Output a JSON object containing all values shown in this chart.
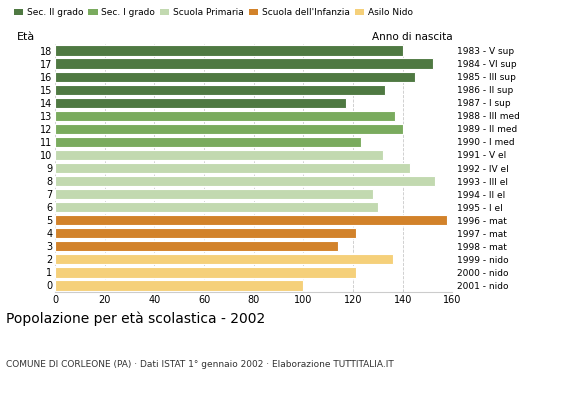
{
  "ages": [
    18,
    17,
    16,
    15,
    14,
    13,
    12,
    11,
    10,
    9,
    8,
    7,
    6,
    5,
    4,
    3,
    2,
    1,
    0
  ],
  "values": [
    140,
    152,
    145,
    133,
    117,
    137,
    140,
    123,
    132,
    143,
    153,
    128,
    130,
    158,
    121,
    114,
    136,
    121,
    100
  ],
  "right_labels": [
    "1983 - V sup",
    "1984 - VI sup",
    "1985 - III sup",
    "1986 - II sup",
    "1987 - I sup",
    "1988 - III med",
    "1989 - II med",
    "1990 - I med",
    "1991 - V el",
    "1992 - IV el",
    "1993 - III el",
    "1994 - II el",
    "1995 - I el",
    "1996 - mat",
    "1997 - mat",
    "1998 - mat",
    "1999 - nido",
    "2000 - nido",
    "2001 - nido"
  ],
  "colors": {
    "Sec. II grado": "#4f7942",
    "Sec. I grado": "#7aab5e",
    "Scuola Primaria": "#c2d9b0",
    "Scuola dell Infanzia": "#d2822a",
    "Asilo Nido": "#f5d07a"
  },
  "age_colors": {
    "18": "#4f7942",
    "17": "#4f7942",
    "16": "#4f7942",
    "15": "#4f7942",
    "14": "#4f7942",
    "13": "#7aab5e",
    "12": "#7aab5e",
    "11": "#7aab5e",
    "10": "#c2d9b0",
    "9": "#c2d9b0",
    "8": "#c2d9b0",
    "7": "#c2d9b0",
    "6": "#c2d9b0",
    "5": "#d2822a",
    "4": "#d2822a",
    "3": "#d2822a",
    "2": "#f5d07a",
    "1": "#f5d07a",
    "0": "#f5d07a"
  },
  "legend_labels": [
    "Sec. II grado",
    "Sec. I grado",
    "Scuola Primaria",
    "Scuola dell'Infanzia",
    "Asilo Nido"
  ],
  "legend_colors": [
    "#4f7942",
    "#7aab5e",
    "#c2d9b0",
    "#d2822a",
    "#f5d07a"
  ],
  "title": "Popolazione per età scolastica - 2002",
  "subtitle": "COMUNE DI CORLEONE (PA) · Dati ISTAT 1° gennaio 2002 · Elaborazione TUTTITALIA.IT",
  "xlabel_eta": "Età",
  "xlabel_anno": "Anno di nascita",
  "xlim": [
    0,
    160
  ],
  "xticks": [
    0,
    20,
    40,
    60,
    80,
    100,
    120,
    140,
    160
  ],
  "grid_color": "#bbbbbb",
  "bar_height": 0.78
}
